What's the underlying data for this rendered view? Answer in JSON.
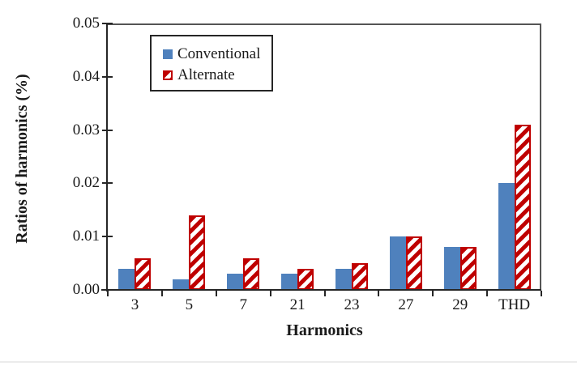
{
  "chart_data": {
    "type": "bar",
    "title": "",
    "xlabel": "Harmonics",
    "ylabel": "Ratios of harmonics (%)",
    "categories": [
      "3",
      "5",
      "7",
      "21",
      "23",
      "27",
      "29",
      "THD"
    ],
    "series": [
      {
        "name": "Conventional",
        "style": "solid",
        "color": "#4f81bd",
        "values": [
          0.004,
          0.002,
          0.003,
          0.003,
          0.004,
          0.01,
          0.008,
          0.02
        ]
      },
      {
        "name": "Alternate",
        "style": "hatched",
        "color": "#bf0000",
        "values": [
          0.006,
          0.014,
          0.006,
          0.004,
          0.005,
          0.01,
          0.008,
          0.031
        ]
      }
    ],
    "ylim": [
      0,
      0.05
    ],
    "ytick_step": 0.01,
    "ytick_labels": [
      "0.00",
      "0.01",
      "0.02",
      "0.03",
      "0.04",
      "0.05"
    ],
    "grid": false,
    "legend_position": "upper-left-inside",
    "axis_color": "#262626",
    "plot_border_color": "#555555"
  },
  "page": {
    "bottom_divider_color": "#ebebeb"
  }
}
